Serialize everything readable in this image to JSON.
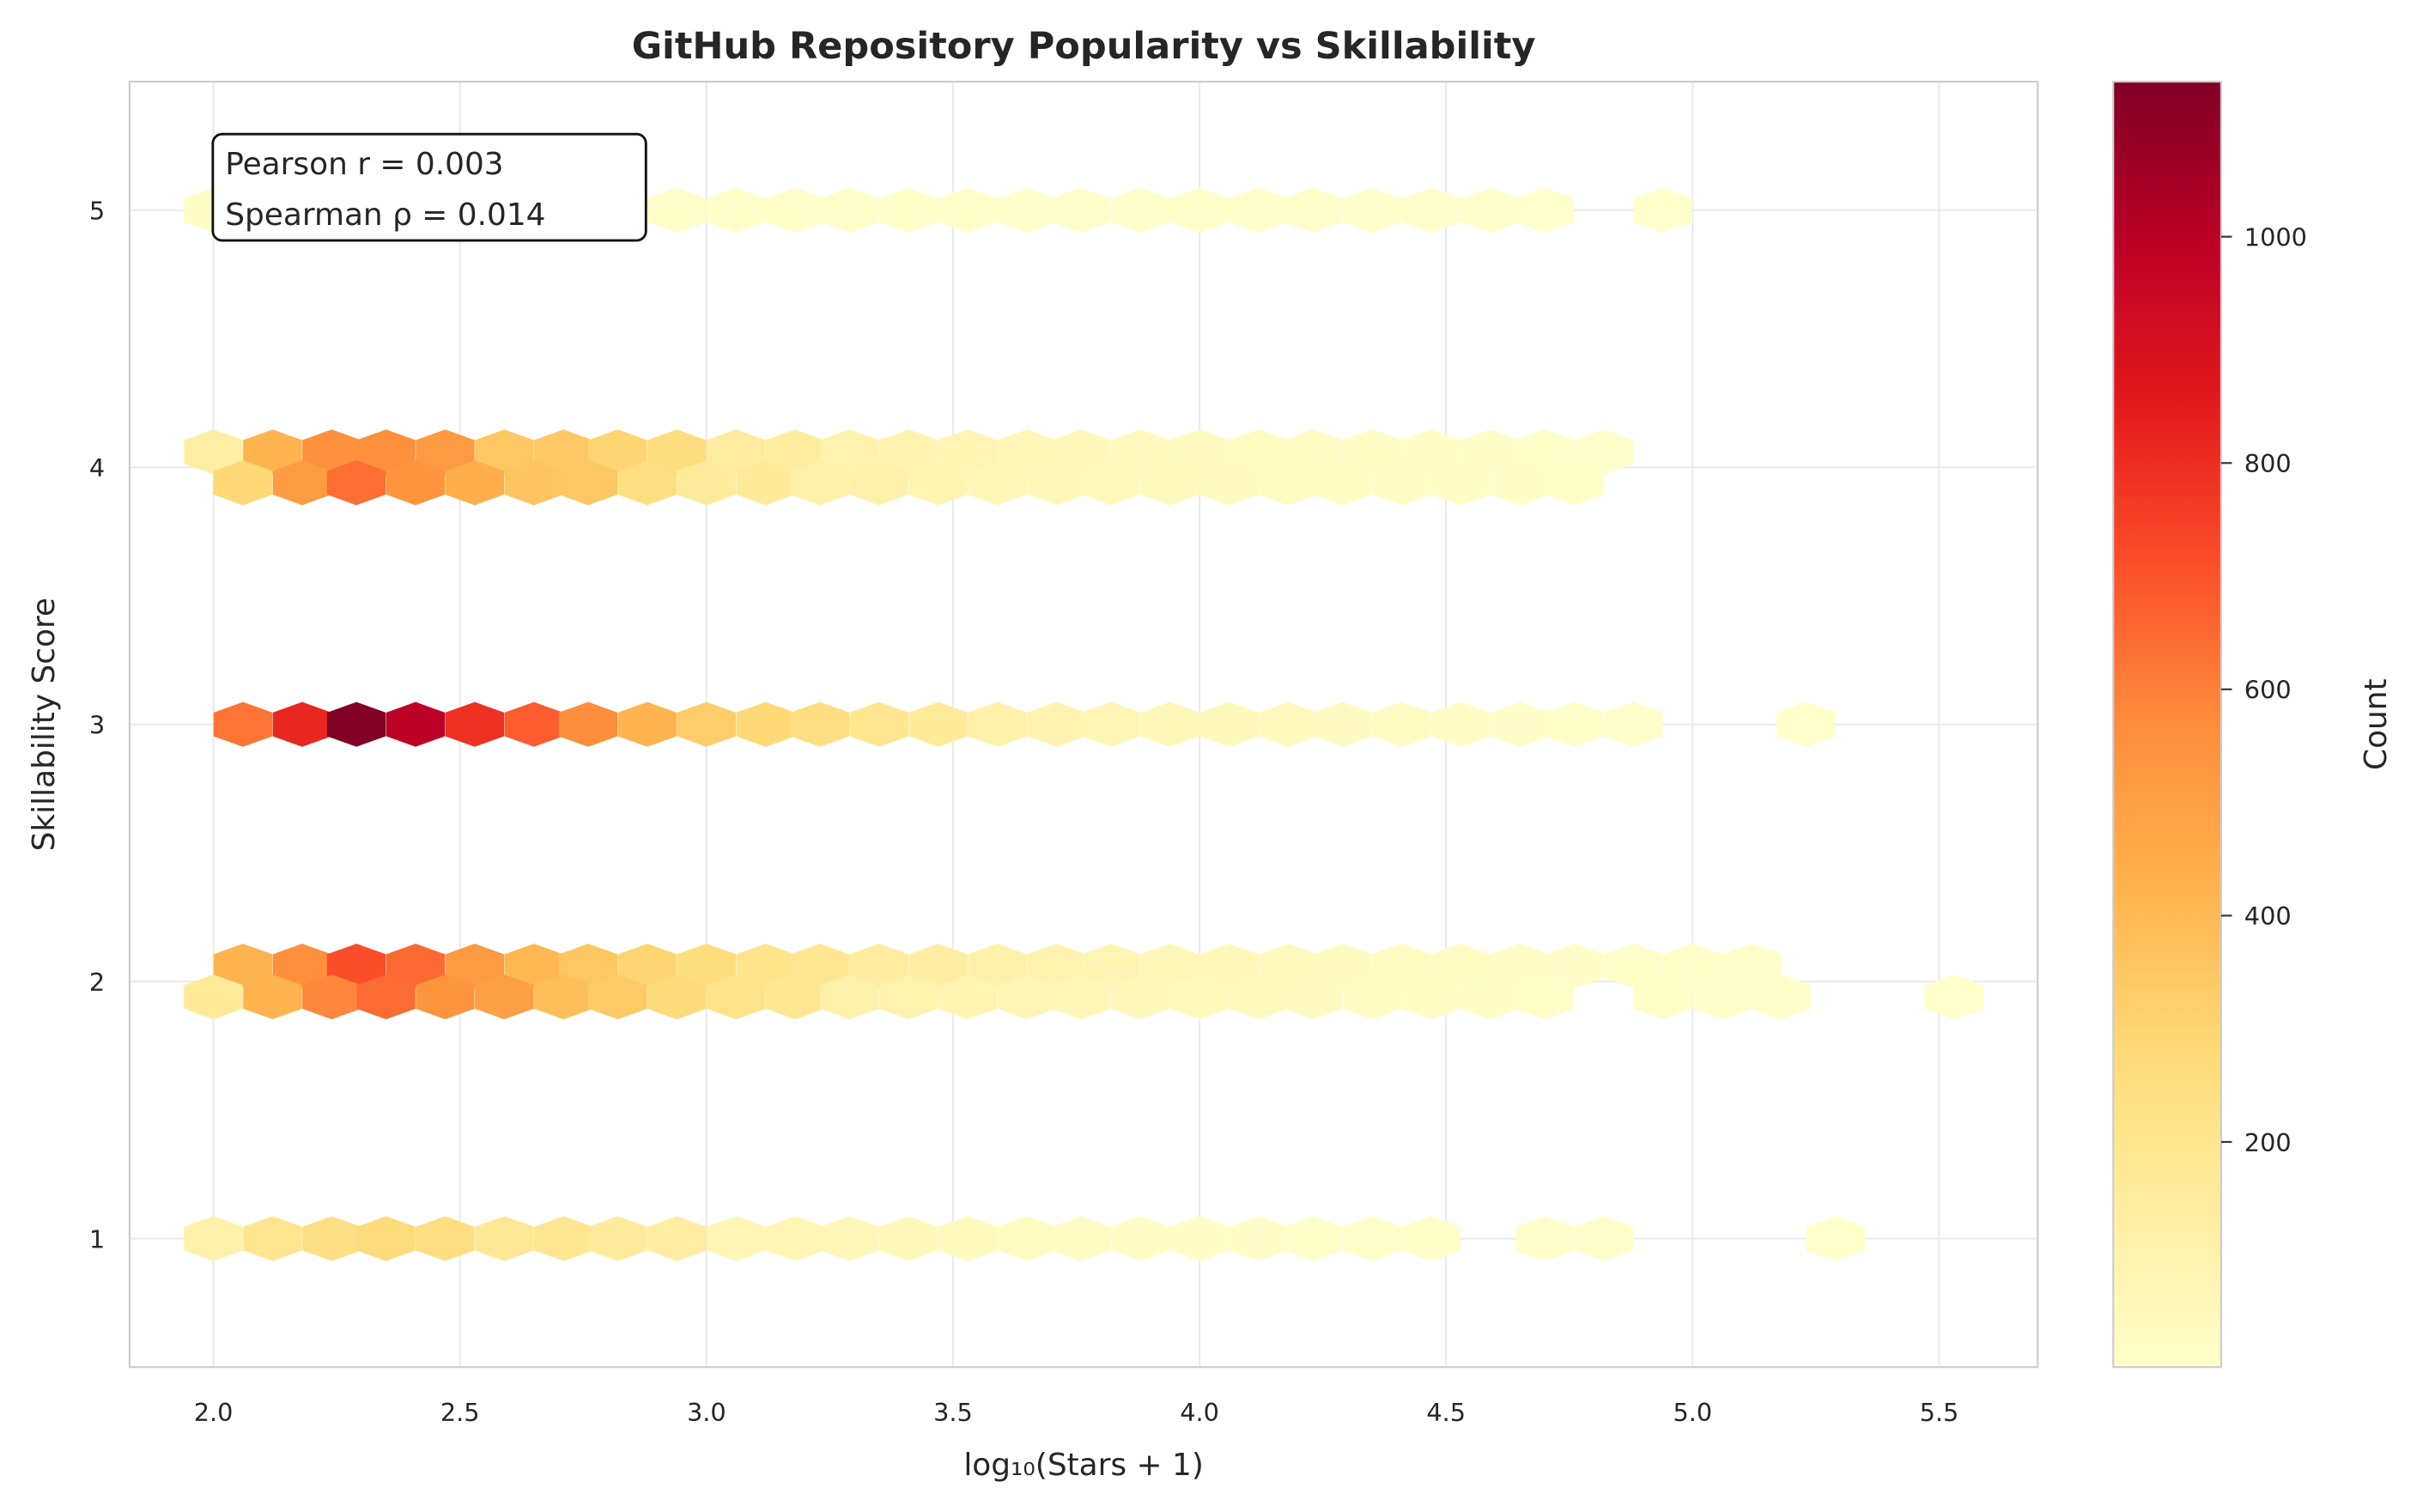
{
  "chart_data": {
    "type": "hexbin",
    "title": "GitHub Repository Popularity vs Skillability",
    "xlabel": "log₁₀(Stars + 1)",
    "ylabel": "Skillability Score",
    "xlim": [
      1.83,
      5.7
    ],
    "ylim": [
      0.5,
      5.5
    ],
    "xticks": [
      "2.0",
      "2.5",
      "3.0",
      "3.5",
      "4.0",
      "4.5",
      "5.0",
      "5.5"
    ],
    "yticks": [
      "1",
      "2",
      "3",
      "4",
      "5"
    ],
    "grid": true,
    "colormap": "YlOrRd",
    "colormap_stops": [
      "#ffffcc",
      "#ffeda0",
      "#fed976",
      "#feb24c",
      "#fd8d3c",
      "#fc4e2a",
      "#e31a1c",
      "#bd0026",
      "#800026"
    ],
    "color_range": [
      1,
      1137
    ],
    "colorbar": {
      "label": "Count",
      "ticks": [
        "200",
        "400",
        "600",
        "800",
        "1000"
      ],
      "placement": "right"
    },
    "annotation": {
      "line1": "Pearson r = 0.003",
      "line2": "Spearman ρ = 0.014",
      "placement": "top-left"
    },
    "rows": [
      {
        "y": 5.0,
        "x": [
          2.0,
          2.12,
          2.24,
          2.35,
          2.47,
          2.59,
          2.71,
          2.82,
          2.94,
          3.06,
          3.18,
          3.29,
          3.41,
          3.53,
          3.65,
          3.76,
          3.88,
          4.0,
          4.12,
          4.23,
          4.35,
          4.47,
          4.59,
          4.7,
          4.94
        ],
        "count": [
          25,
          22,
          20,
          18,
          16,
          15,
          14,
          14,
          13,
          12,
          12,
          11,
          10,
          10,
          9,
          9,
          8,
          8,
          7,
          6,
          6,
          5,
          5,
          4,
          2
        ]
      },
      {
        "y": 4.06,
        "x": [
          2.0,
          2.12,
          2.24,
          2.35,
          2.47,
          2.59,
          2.71,
          2.82,
          2.94,
          3.06,
          3.18,
          3.29,
          3.41,
          3.53,
          3.65,
          3.76,
          3.88,
          4.0,
          4.12,
          4.23,
          4.35,
          4.47,
          4.59,
          4.7,
          4.82
        ],
        "count": [
          130,
          420,
          555,
          560,
          520,
          350,
          345,
          300,
          255,
          150,
          145,
          105,
          95,
          85,
          70,
          60,
          50,
          42,
          36,
          30,
          26,
          22,
          18,
          14,
          8
        ]
      },
      {
        "y": 3.94,
        "x": [
          2.06,
          2.18,
          2.29,
          2.41,
          2.53,
          2.65,
          2.76,
          2.88,
          3.0,
          3.12,
          3.23,
          3.35,
          3.47,
          3.59,
          3.71,
          3.82,
          3.94,
          4.06,
          4.18,
          4.29,
          4.41,
          4.53,
          4.65,
          4.76
        ],
        "count": [
          285,
          510,
          640,
          540,
          440,
          360,
          350,
          250,
          160,
          165,
          115,
          110,
          90,
          70,
          60,
          50,
          45,
          40,
          34,
          28,
          24,
          20,
          16,
          10
        ]
      },
      {
        "y": 3.0,
        "x": [
          2.06,
          2.18,
          2.29,
          2.41,
          2.53,
          2.65,
          2.76,
          2.88,
          3.0,
          3.12,
          3.23,
          3.35,
          3.47,
          3.59,
          3.71,
          3.82,
          3.94,
          4.06,
          4.18,
          4.29,
          4.41,
          4.53,
          4.65,
          4.76,
          4.88,
          5.23
        ],
        "count": [
          625,
          820,
          1137,
          995,
          790,
          680,
          565,
          420,
          330,
          285,
          250,
          195,
          165,
          115,
          95,
          80,
          65,
          55,
          45,
          38,
          30,
          24,
          18,
          12,
          8,
          3
        ]
      },
      {
        "y": 2.06,
        "x": [
          2.06,
          2.18,
          2.29,
          2.41,
          2.53,
          2.65,
          2.76,
          2.88,
          3.0,
          3.12,
          3.23,
          3.35,
          3.47,
          3.59,
          3.71,
          3.82,
          3.94,
          4.06,
          4.18,
          4.29,
          4.41,
          4.53,
          4.65,
          4.76,
          4.88,
          5.0,
          5.12
        ],
        "count": [
          420,
          560,
          715,
          650,
          520,
          410,
          350,
          300,
          260,
          210,
          190,
          150,
          135,
          115,
          100,
          85,
          70,
          60,
          50,
          42,
          36,
          30,
          24,
          18,
          14,
          10,
          6
        ]
      },
      {
        "y": 1.94,
        "x": [
          2.0,
          2.12,
          2.24,
          2.35,
          2.47,
          2.59,
          2.71,
          2.82,
          2.94,
          3.06,
          3.18,
          3.29,
          3.41,
          3.53,
          3.65,
          3.76,
          3.88,
          4.0,
          4.12,
          4.23,
          4.35,
          4.47,
          4.59,
          4.7,
          4.94,
          5.06,
          5.18,
          5.53
        ],
        "count": [
          165,
          420,
          580,
          645,
          540,
          500,
          380,
          340,
          270,
          215,
          190,
          110,
          100,
          90,
          80,
          70,
          60,
          52,
          45,
          38,
          32,
          26,
          20,
          14,
          10,
          8,
          6,
          3
        ]
      },
      {
        "y": 1.0,
        "x": [
          2.0,
          2.12,
          2.24,
          2.35,
          2.47,
          2.59,
          2.71,
          2.82,
          2.94,
          3.06,
          3.18,
          3.29,
          3.41,
          3.53,
          3.65,
          3.76,
          3.88,
          4.0,
          4.12,
          4.23,
          4.35,
          4.47,
          4.7,
          4.82,
          5.29
        ],
        "count": [
          110,
          200,
          240,
          265,
          250,
          180,
          190,
          160,
          140,
          80,
          75,
          70,
          60,
          45,
          35,
          30,
          25,
          20,
          18,
          15,
          12,
          10,
          6,
          5,
          3
        ]
      }
    ]
  }
}
